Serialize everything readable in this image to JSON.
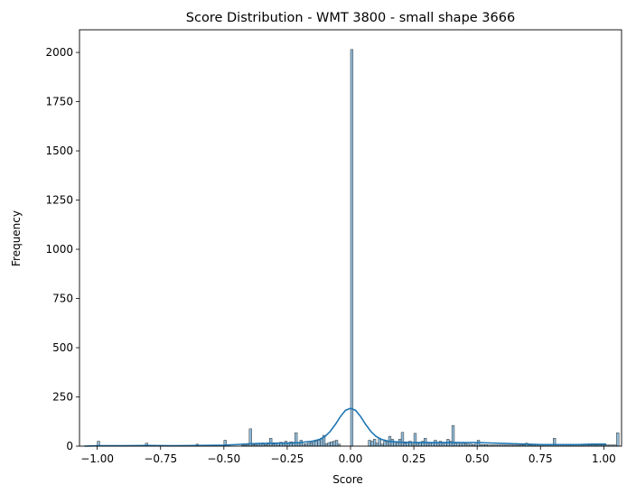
{
  "chart_data": {
    "type": "bar",
    "title": "Score Distribution - WMT 3800 - small shape 3666",
    "xlabel": "Score",
    "ylabel": "Frequency",
    "xlim": [
      -1.07,
      1.07
    ],
    "ylim": [
      0,
      2115
    ],
    "xticks": [
      -1.0,
      -0.75,
      -0.5,
      -0.25,
      0.0,
      0.25,
      0.5,
      0.75,
      1.0
    ],
    "xtick_labels": [
      "−1.00",
      "−0.75",
      "−0.50",
      "−0.25",
      "0.00",
      "0.25",
      "0.50",
      "0.75",
      "1.00"
    ],
    "yticks": [
      0,
      250,
      500,
      750,
      1000,
      1250,
      1500,
      1750,
      2000
    ],
    "ytick_labels": [
      "0",
      "250",
      "500",
      "750",
      "1000",
      "1250",
      "1500",
      "1750",
      "2000"
    ],
    "grid": false,
    "bar_color": "#1f77b4",
    "bar_opacity": 0.5,
    "kde_color": "#1f77b4",
    "bins": {
      "start": -1.0,
      "width": 0.01,
      "values": [
        25,
        0,
        0,
        0,
        0,
        0,
        0,
        0,
        0,
        0,
        0,
        0,
        0,
        0,
        0,
        0,
        0,
        0,
        0,
        15,
        0,
        0,
        0,
        0,
        0,
        0,
        0,
        0,
        0,
        0,
        0,
        0,
        0,
        0,
        0,
        0,
        0,
        0,
        0,
        10,
        0,
        0,
        0,
        0,
        0,
        0,
        0,
        0,
        0,
        0,
        30,
        0,
        0,
        0,
        0,
        0,
        0,
        5,
        5,
        8,
        88,
        8,
        8,
        10,
        12,
        10,
        8,
        10,
        40,
        10,
        12,
        15,
        20,
        18,
        25,
        15,
        22,
        20,
        68,
        15,
        30,
        10,
        12,
        15,
        18,
        25,
        25,
        30,
        40,
        55,
        12,
        18,
        22,
        25,
        30,
        10,
        0,
        0,
        0,
        0,
        2015,
        0,
        0,
        0,
        0,
        0,
        0,
        30,
        25,
        35,
        15,
        40,
        10,
        25,
        20,
        50,
        35,
        20,
        15,
        35,
        70,
        15,
        20,
        25,
        10,
        65,
        15,
        20,
        25,
        40,
        20,
        15,
        18,
        30,
        20,
        25,
        15,
        20,
        35,
        25,
        105,
        15,
        20,
        10,
        15,
        12,
        10,
        10,
        8,
        10,
        30,
        8,
        8,
        8,
        6,
        6,
        6,
        6,
        6,
        6,
        6,
        6,
        6,
        6,
        6,
        6,
        6,
        6,
        6,
        15,
        6,
        6,
        6,
        6,
        6,
        6,
        6,
        6,
        6,
        6,
        40,
        6,
        6,
        6,
        6,
        6,
        6,
        6,
        6,
        6,
        6,
        6,
        6,
        6,
        6,
        6,
        6,
        6,
        6,
        6,
        6,
        6,
        6,
        6,
        6,
        68
      ]
    },
    "kde": {
      "x": [
        -1.05,
        -1.0,
        -0.9,
        -0.8,
        -0.7,
        -0.6,
        -0.5,
        -0.45,
        -0.4,
        -0.35,
        -0.3,
        -0.25,
        -0.2,
        -0.15,
        -0.12,
        -0.1,
        -0.08,
        -0.06,
        -0.04,
        -0.02,
        0.0,
        0.02,
        0.04,
        0.06,
        0.08,
        0.1,
        0.12,
        0.15,
        0.2,
        0.25,
        0.3,
        0.35,
        0.4,
        0.45,
        0.5,
        0.55,
        0.6,
        0.65,
        0.7,
        0.75,
        0.8,
        0.85,
        0.9,
        0.95,
        1.0,
        1.01
      ],
      "y": [
        0,
        2,
        2,
        3,
        2,
        3,
        5,
        8,
        12,
        14,
        15,
        15,
        18,
        25,
        35,
        50,
        75,
        110,
        150,
        182,
        192,
        182,
        150,
        110,
        75,
        50,
        35,
        25,
        20,
        18,
        18,
        18,
        18,
        18,
        18,
        16,
        14,
        12,
        10,
        8,
        8,
        8,
        8,
        10,
        10,
        10
      ]
    }
  }
}
